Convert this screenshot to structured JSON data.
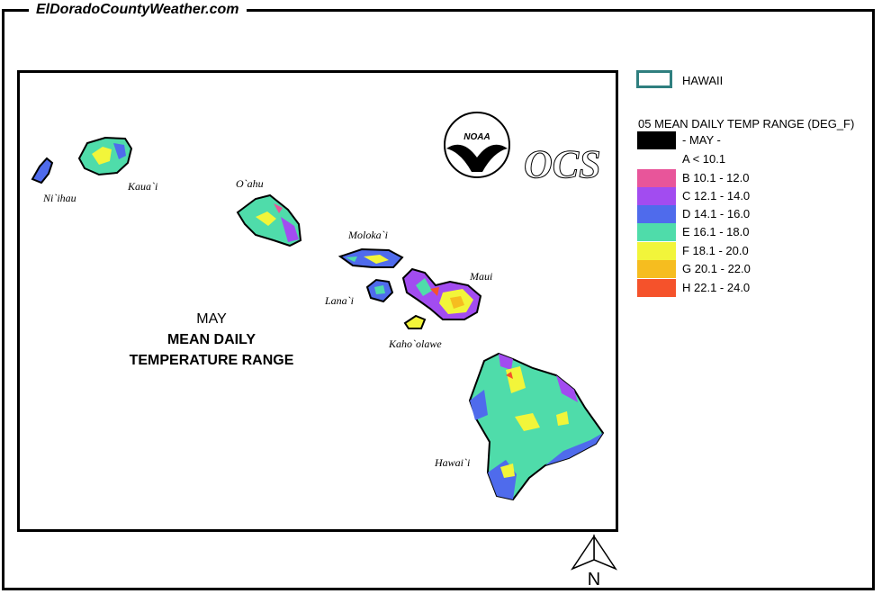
{
  "site": {
    "title": "ElDoradoCountyWeather.com"
  },
  "map": {
    "islands": [
      {
        "name": "Ni`ihau"
      },
      {
        "name": "Kaua`i"
      },
      {
        "name": "O`ahu"
      },
      {
        "name": "Moloka`i"
      },
      {
        "name": "Lana`i"
      },
      {
        "name": "Maui"
      },
      {
        "name": "Kaho`olawe"
      },
      {
        "name": "Hawai`i"
      }
    ],
    "title": {
      "month": "MAY",
      "line1": "MEAN DAILY",
      "line2": "TEMPERATURE RANGE"
    },
    "logos": {
      "noaa": "NOAA",
      "ocs": "OCS"
    },
    "north_label": "N"
  },
  "legend": {
    "boundary_label": "HAWAII",
    "title": "05 MEAN DAILY TEMP RANGE (DEG_F)",
    "items": [
      {
        "label": "- MAY -",
        "color": "#000000"
      },
      {
        "label": "A < 10.1",
        "color": "#ffffff"
      },
      {
        "label": "B 10.1 - 12.0",
        "color": "#e8559a"
      },
      {
        "label": "C 12.1 - 14.0",
        "color": "#a24cf0"
      },
      {
        "label": "D 14.1 - 16.0",
        "color": "#4f6bec"
      },
      {
        "label": "E 16.1 - 18.0",
        "color": "#4fdcaa"
      },
      {
        "label": "F 18.1 - 20.0",
        "color": "#f2f53a"
      },
      {
        "label": "G 20.1 - 22.0",
        "color": "#f6bd1f"
      },
      {
        "label": "H 22.1 - 24.0",
        "color": "#f5522b"
      }
    ]
  }
}
